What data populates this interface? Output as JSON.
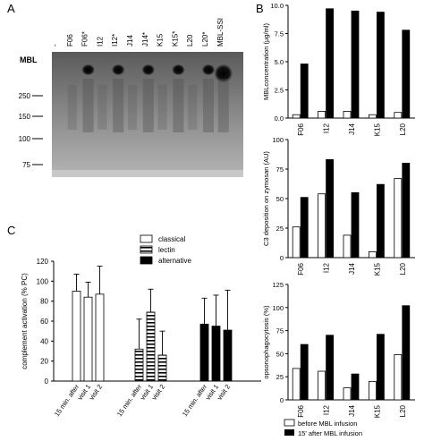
{
  "panel_labels": {
    "a": "A",
    "b": "B",
    "c": "C"
  },
  "blot": {
    "lanes": [
      "-",
      "F06",
      "F06*",
      "I12",
      "I12*",
      "J14",
      "J14*",
      "K15",
      "K15*",
      "L20",
      "L20*",
      "MBL-SSI"
    ],
    "row_label": "MBL",
    "markers": [
      "250",
      "150",
      "100",
      "75"
    ]
  },
  "chart_data": [
    {
      "type": "bar",
      "id": "b1",
      "categories": [
        "F06",
        "I12",
        "J14",
        "K15",
        "L20"
      ],
      "series": [
        {
          "name": "before MBL infusion",
          "values": [
            0.3,
            0.6,
            0.6,
            0.3,
            0.5
          ]
        },
        {
          "name": "15' after MBL infusion",
          "values": [
            4.8,
            9.7,
            9.5,
            9.4,
            7.8
          ]
        }
      ],
      "ylabel": "MBLconcentration (µg/ml)",
      "ylim": [
        0,
        10
      ],
      "yticks": [
        "0.0",
        "2.5",
        "5.0",
        "7.5",
        "10.0"
      ]
    },
    {
      "type": "bar",
      "id": "b2",
      "categories": [
        "F06",
        "I12",
        "J14",
        "K15",
        "L20"
      ],
      "series": [
        {
          "name": "before MBL infusion",
          "values": [
            26,
            54,
            19,
            5,
            67
          ]
        },
        {
          "name": "15' after MBL infusion",
          "values": [
            51,
            83,
            55,
            62,
            80
          ]
        }
      ],
      "ylabel": "C3 deposition on zymosan (AU)",
      "ylim": [
        0,
        100
      ],
      "yticks": [
        "0",
        "25",
        "50",
        "75",
        "100"
      ]
    },
    {
      "type": "bar",
      "id": "b3",
      "categories": [
        "F06",
        "I12",
        "J14",
        "K15",
        "L20"
      ],
      "series": [
        {
          "name": "before MBL infusion",
          "values": [
            34,
            31,
            13,
            20,
            49
          ]
        },
        {
          "name": "15' after MBL infusion",
          "values": [
            60,
            70,
            28,
            71,
            102
          ]
        }
      ],
      "ylabel": "opsonophagocytosis (%)",
      "ylim": [
        0,
        125
      ],
      "yticks": [
        "0",
        "25",
        "50",
        "75",
        "100",
        "125"
      ]
    },
    {
      "type": "bar",
      "id": "c",
      "groups": [
        "classical",
        "lectin",
        "alternative"
      ],
      "categories": [
        "15 min. after",
        "visit 1",
        "visit 2"
      ],
      "series": [
        {
          "name": "classical",
          "values": [
            90,
            84,
            87
          ],
          "errors": [
            17,
            15,
            28
          ]
        },
        {
          "name": "lectin",
          "values": [
            32,
            69,
            26
          ],
          "errors": [
            30,
            23,
            24
          ]
        },
        {
          "name": "alternative",
          "values": [
            57,
            55,
            51
          ],
          "errors": [
            26,
            31,
            40
          ]
        }
      ],
      "ylabel": "complement activation (% PC)",
      "ylim": [
        0,
        120
      ],
      "yticks": [
        "0",
        "20",
        "40",
        "60",
        "80",
        "100",
        "120"
      ],
      "legend": "top-right"
    }
  ],
  "legend_b": [
    "before MBL infusion",
    "15' after MBL infusion"
  ]
}
